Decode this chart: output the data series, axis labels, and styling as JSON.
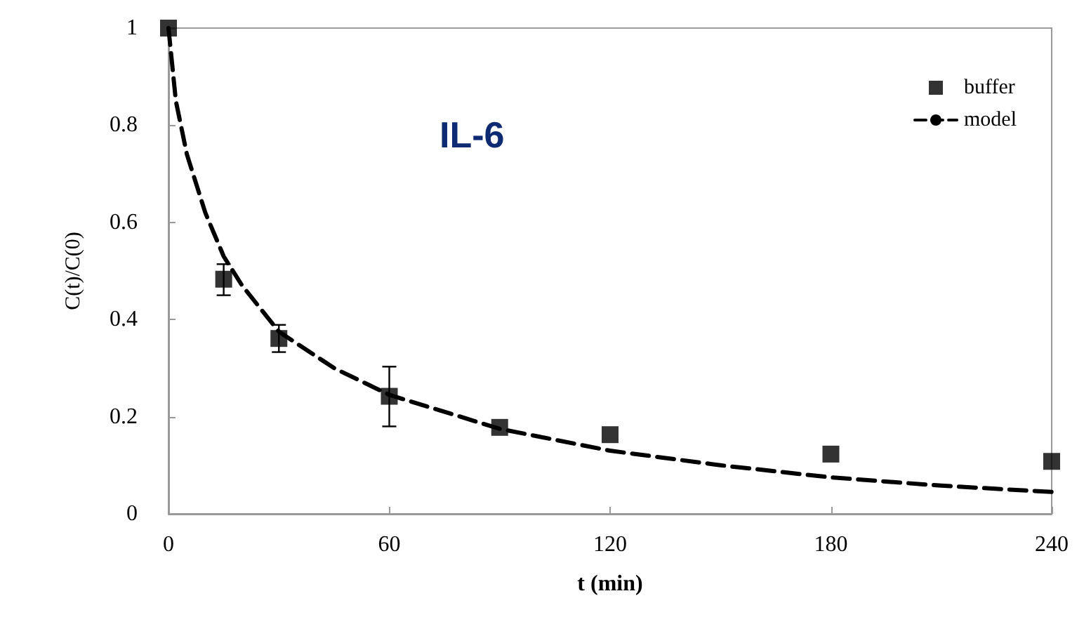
{
  "chart_data": {
    "type": "scatter",
    "xlabel": "t (min)",
    "ylabel": "C(t)/C(0)",
    "annotations": [
      "IL-6"
    ],
    "xlim": [
      0,
      240
    ],
    "xticks": [
      0,
      60,
      120,
      180,
      240
    ],
    "ylim": [
      0,
      1
    ],
    "yticks": [
      0,
      0.2,
      0.4,
      0.6,
      0.8,
      1
    ],
    "grid": false,
    "legend": "top right",
    "series": [
      {
        "name": "buffer",
        "marker": "square",
        "color": "#000000",
        "x": [
          0,
          15,
          30,
          60,
          90,
          120,
          180,
          240
        ],
        "values": [
          1,
          0.483,
          0.361,
          0.242,
          0.178,
          0.163,
          0.123,
          0.108
        ],
        "errors": [
          null,
          [
            0.45,
            0.514
          ],
          [
            0.333,
            0.389
          ],
          [
            0.18,
            0.303
          ],
          null,
          null,
          null,
          null
        ]
      },
      {
        "name": "model",
        "type": "line",
        "line_style": "dashed",
        "marker": "none",
        "color": "#000000",
        "x": [
          0,
          2,
          5,
          10,
          15,
          20,
          30,
          45,
          60,
          90,
          120,
          150,
          180,
          210,
          240
        ],
        "values": [
          1,
          0.85,
          0.74,
          0.62,
          0.53,
          0.47,
          0.375,
          0.3,
          0.245,
          0.175,
          0.13,
          0.1,
          0.075,
          0.058,
          0.045
        ]
      }
    ]
  }
}
